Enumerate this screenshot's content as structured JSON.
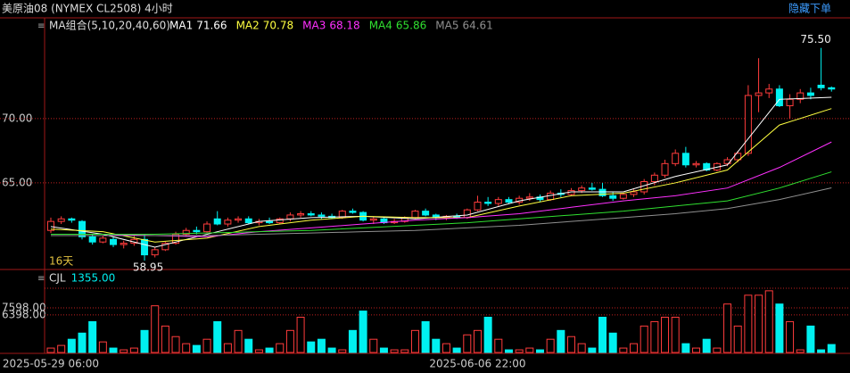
{
  "chart_data": {
    "type": "candlestick",
    "title": "美原油08 (NYMEX CL2508) 4小时",
    "button": "隐藏下单",
    "indicator_title": "MA组合(5,10,20,40,60)",
    "period_label": "16天",
    "categories": [
      "2025-05-29 06:00",
      null,
      null,
      null,
      null,
      null,
      null,
      null,
      null,
      null,
      null,
      null,
      null,
      null,
      null,
      null,
      null,
      null,
      null,
      null,
      null,
      null,
      null,
      null,
      null,
      null,
      null,
      null,
      null,
      null,
      null,
      null,
      null,
      null,
      null,
      null,
      null,
      null,
      null,
      null,
      null,
      "2025-06-06 22:00",
      null,
      null,
      null,
      null,
      null,
      null,
      null,
      null,
      null,
      null,
      null,
      null,
      null,
      null,
      null,
      null,
      null,
      null,
      null,
      null,
      null,
      null,
      null,
      null,
      null,
      null,
      null,
      null,
      null,
      null,
      null,
      null,
      null,
      null
    ],
    "ohlc": [
      [
        61.3,
        62.3,
        61.1,
        62.0
      ],
      [
        62.0,
        62.4,
        61.8,
        62.2
      ],
      [
        62.2,
        62.3,
        61.9,
        62.1
      ],
      [
        62.0,
        62.1,
        60.6,
        60.8
      ],
      [
        60.8,
        61.0,
        60.2,
        60.4
      ],
      [
        60.4,
        60.9,
        60.3,
        60.7
      ],
      [
        60.6,
        60.8,
        60.0,
        60.2
      ],
      [
        60.2,
        60.5,
        59.9,
        60.3
      ],
      [
        60.3,
        60.9,
        60.1,
        60.6
      ],
      [
        60.6,
        61.0,
        58.95,
        59.4
      ],
      [
        59.4,
        60.0,
        59.2,
        59.8
      ],
      [
        59.8,
        60.4,
        59.7,
        60.3
      ],
      [
        60.3,
        61.2,
        60.2,
        61.0
      ],
      [
        61.0,
        61.5,
        60.8,
        61.3
      ],
      [
        61.3,
        61.6,
        61.0,
        61.2
      ],
      [
        61.2,
        62.0,
        61.1,
        61.8
      ],
      [
        62.2,
        62.8,
        61.7,
        61.8
      ],
      [
        61.8,
        62.3,
        61.6,
        62.1
      ],
      [
        62.1,
        62.4,
        61.9,
        62.2
      ],
      [
        62.2,
        62.4,
        61.8,
        61.9
      ],
      [
        61.9,
        62.2,
        61.7,
        62.0
      ],
      [
        62.0,
        62.3,
        61.8,
        61.9
      ],
      [
        61.9,
        62.3,
        61.8,
        62.2
      ],
      [
        62.2,
        62.7,
        62.0,
        62.5
      ],
      [
        62.5,
        62.8,
        62.3,
        62.6
      ],
      [
        62.6,
        62.8,
        62.4,
        62.5
      ],
      [
        62.5,
        62.7,
        62.2,
        62.4
      ],
      [
        62.4,
        62.6,
        62.2,
        62.3
      ],
      [
        62.3,
        62.9,
        62.2,
        62.8
      ],
      [
        62.8,
        63.0,
        62.6,
        62.7
      ],
      [
        62.7,
        62.8,
        62.0,
        62.1
      ],
      [
        62.1,
        62.4,
        61.8,
        62.2
      ],
      [
        62.2,
        62.3,
        61.8,
        61.9
      ],
      [
        61.9,
        62.2,
        61.8,
        62.0
      ],
      [
        62.0,
        62.4,
        61.9,
        62.3
      ],
      [
        62.3,
        62.9,
        62.2,
        62.8
      ],
      [
        62.8,
        63.0,
        62.4,
        62.5
      ],
      [
        62.5,
        62.6,
        62.1,
        62.3
      ],
      [
        62.3,
        62.5,
        62.1,
        62.4
      ],
      [
        62.4,
        62.6,
        62.2,
        62.3
      ],
      [
        62.3,
        63.0,
        62.2,
        62.9
      ],
      [
        62.9,
        64.0,
        62.8,
        63.5
      ],
      [
        63.5,
        63.9,
        63.2,
        63.4
      ],
      [
        63.4,
        63.9,
        63.2,
        63.7
      ],
      [
        63.7,
        63.9,
        63.4,
        63.5
      ],
      [
        63.5,
        64.0,
        63.3,
        63.8
      ],
      [
        63.8,
        64.2,
        63.6,
        63.9
      ],
      [
        63.9,
        64.1,
        63.5,
        63.7
      ],
      [
        63.7,
        64.4,
        63.6,
        64.2
      ],
      [
        64.2,
        64.5,
        63.9,
        64.1
      ],
      [
        64.1,
        64.6,
        64.0,
        64.4
      ],
      [
        64.4,
        64.8,
        64.2,
        64.6
      ],
      [
        64.6,
        65.0,
        64.4,
        64.5
      ],
      [
        64.5,
        65.0,
        63.9,
        64.0
      ],
      [
        64.0,
        64.3,
        63.6,
        63.8
      ],
      [
        63.8,
        64.2,
        63.7,
        64.1
      ],
      [
        64.1,
        64.5,
        63.9,
        64.3
      ],
      [
        64.3,
        65.3,
        64.1,
        65.1
      ],
      [
        65.1,
        65.8,
        64.8,
        65.6
      ],
      [
        65.6,
        66.8,
        65.4,
        66.5
      ],
      [
        66.5,
        67.6,
        66.3,
        67.3
      ],
      [
        67.3,
        67.8,
        66.2,
        66.4
      ],
      [
        66.4,
        66.7,
        66.2,
        66.5
      ],
      [
        66.5,
        66.6,
        65.9,
        66.0
      ],
      [
        66.0,
        66.6,
        65.9,
        66.5
      ],
      [
        66.5,
        67.0,
        66.3,
        66.8
      ],
      [
        66.8,
        67.5,
        66.6,
        67.3
      ],
      [
        67.3,
        72.6,
        67.1,
        71.8
      ],
      [
        71.8,
        74.7,
        70.5,
        72.0
      ],
      [
        72.0,
        72.7,
        71.6,
        72.3
      ],
      [
        72.3,
        72.6,
        70.9,
        71.0
      ],
      [
        71.0,
        71.9,
        70.0,
        71.5
      ],
      [
        71.5,
        72.3,
        71.2,
        72.0
      ],
      [
        72.0,
        72.4,
        71.5,
        71.8
      ],
      [
        72.6,
        75.5,
        72.2,
        72.4
      ],
      [
        72.4,
        72.5,
        72.1,
        72.3
      ]
    ],
    "extreme_labels": [
      {
        "index": 74,
        "part": 1,
        "label": "75.50"
      },
      {
        "index": 9,
        "part": 2,
        "label": "58.95"
      }
    ],
    "ylim": [
      58.4,
      77.7
    ],
    "yticks": [
      {
        "value": 70,
        "label": "70.00"
      },
      {
        "value": 65,
        "label": "65.00"
      }
    ],
    "grid": true,
    "up_color": "#ff3c3c",
    "down_color": "#00f0f0",
    "ma_x": [
      0,
      5,
      10,
      15,
      20,
      25,
      30,
      35,
      40,
      45,
      50,
      55,
      60,
      65,
      70,
      75
    ],
    "ma_series": [
      {
        "name": "MA1",
        "color": "#ffffff",
        "values": [
          61.6,
          61.0,
          60.0,
          61.0,
          62.0,
          62.3,
          62.4,
          62.2,
          62.5,
          63.6,
          64.3,
          64.3,
          65.5,
          66.4,
          71.5,
          71.66
        ]
      },
      {
        "name": "MA2",
        "color": "#ffff40",
        "values": [
          61.4,
          61.2,
          60.4,
          60.7,
          61.6,
          62.1,
          62.4,
          62.3,
          62.3,
          63.2,
          64.0,
          64.2,
          65.0,
          66.0,
          69.5,
          70.78
        ]
      },
      {
        "name": "MA3",
        "color": "#ff30ff",
        "values": [
          61.0,
          61.0,
          60.9,
          60.8,
          61.2,
          61.5,
          61.8,
          62.1,
          62.3,
          62.6,
          63.1,
          63.6,
          64.0,
          64.6,
          66.2,
          68.18
        ]
      },
      {
        "name": "MA4",
        "color": "#30e030",
        "values": [
          61.0,
          61.0,
          61.0,
          61.1,
          61.2,
          61.3,
          61.5,
          61.7,
          61.9,
          62.2,
          62.5,
          62.8,
          63.2,
          63.6,
          64.6,
          65.86
        ]
      },
      {
        "name": "MA5",
        "color": "#909090",
        "values": [
          60.9,
          60.9,
          60.9,
          60.9,
          61.0,
          61.1,
          61.2,
          61.3,
          61.5,
          61.7,
          62.0,
          62.3,
          62.6,
          63.0,
          63.7,
          64.61
        ]
      }
    ],
    "volume": {
      "name": "CJL",
      "last_label": "1355.00",
      "ylim": [
        0,
        12000
      ],
      "yticks": [
        {
          "value": 6398,
          "label": "6398.00"
        },
        {
          "value": 7598,
          "label": "7598.00"
        }
      ],
      "values": [
        750,
        1200,
        2250,
        3300,
        5250,
        1800,
        750,
        450,
        750,
        3750,
        7950,
        4500,
        2700,
        1500,
        1200,
        2250,
        5250,
        1500,
        3750,
        2250,
        450,
        750,
        1500,
        3750,
        6000,
        1800,
        2250,
        750,
        450,
        3750,
        7050,
        2250,
        750,
        450,
        450,
        3750,
        5250,
        2250,
        1500,
        750,
        3000,
        3750,
        6000,
        2250,
        450,
        450,
        750,
        450,
        2250,
        3750,
        2700,
        1500,
        750,
        6000,
        3300,
        750,
        1500,
        4500,
        5250,
        6000,
        6000,
        1500,
        750,
        2250,
        750,
        8250,
        4500,
        9750,
        9750,
        10500,
        8250,
        5250,
        450,
        4500,
        450,
        1355
      ]
    }
  }
}
